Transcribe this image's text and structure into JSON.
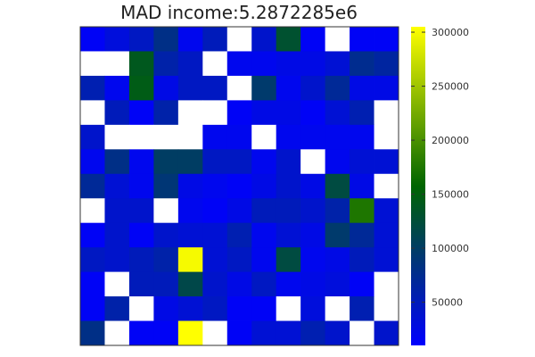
{
  "chart_data": {
    "type": "heatmap",
    "title": "MAD income:5.2872285e6",
    "xlabel": "",
    "ylabel": "",
    "n_rows": 13,
    "n_cols": 13,
    "missing_color": "#ffffff",
    "colorbar": {
      "min": 10000,
      "max": 305000,
      "ticks": [
        50000,
        100000,
        150000,
        200000,
        250000,
        300000
      ],
      "tick_labels": [
        "50000",
        "100000",
        "150000",
        "200000",
        "250000",
        "300000"
      ],
      "colors": [
        "#0000ff",
        "#006400",
        "#ffff00"
      ]
    },
    "values": [
      [
        15000,
        30000,
        45000,
        80000,
        20000,
        50000,
        null,
        40000,
        130000,
        15000,
        null,
        15000,
        15000
      ],
      [
        null,
        null,
        140000,
        60000,
        45000,
        null,
        20000,
        20000,
        25000,
        25000,
        35000,
        75000,
        65000
      ],
      [
        55000,
        20000,
        145000,
        25000,
        45000,
        45000,
        null,
        95000,
        20000,
        40000,
        70000,
        25000,
        25000
      ],
      [
        null,
        50000,
        15000,
        60000,
        null,
        null,
        15000,
        25000,
        25000,
        15000,
        35000,
        55000,
        null
      ],
      [
        40000,
        null,
        null,
        null,
        null,
        20000,
        20000,
        null,
        20000,
        20000,
        20000,
        20000,
        null
      ],
      [
        20000,
        80000,
        20000,
        100000,
        100000,
        45000,
        45000,
        20000,
        40000,
        null,
        20000,
        35000,
        35000
      ],
      [
        70000,
        35000,
        20000,
        90000,
        25000,
        20000,
        15000,
        25000,
        40000,
        25000,
        120000,
        25000,
        null
      ],
      [
        null,
        40000,
        40000,
        null,
        20000,
        15000,
        25000,
        50000,
        50000,
        40000,
        60000,
        175000,
        35000
      ],
      [
        15000,
        40000,
        15000,
        40000,
        35000,
        35000,
        55000,
        20000,
        35000,
        25000,
        95000,
        70000,
        35000
      ],
      [
        45000,
        40000,
        50000,
        60000,
        300000,
        35000,
        45000,
        20000,
        120000,
        20000,
        25000,
        50000,
        35000
      ],
      [
        15000,
        null,
        50000,
        50000,
        115000,
        40000,
        25000,
        45000,
        20000,
        25000,
        30000,
        15000,
        null
      ],
      [
        15000,
        60000,
        null,
        25000,
        35000,
        45000,
        15000,
        15000,
        null,
        30000,
        null,
        55000,
        null
      ],
      [
        80000,
        null,
        15000,
        15000,
        305000,
        null,
        15000,
        35000,
        35000,
        55000,
        40000,
        null,
        40000
      ]
    ]
  }
}
